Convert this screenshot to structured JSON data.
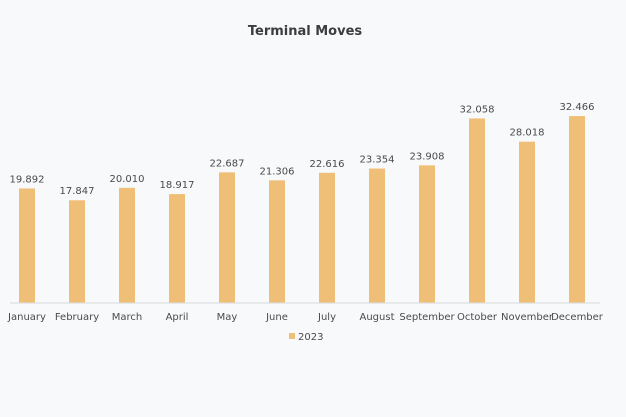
{
  "chart_data": {
    "type": "bar",
    "title": "Terminal Moves",
    "xlabel": "",
    "ylabel": "",
    "categories": [
      "January",
      "February",
      "March",
      "April",
      "May",
      "June",
      "July",
      "August",
      "September",
      "October",
      "November",
      "December"
    ],
    "series": [
      {
        "name": "2023",
        "values": [
          19892,
          17847,
          20010,
          18917,
          22687,
          21306,
          22616,
          23354,
          23908,
          32058,
          28018,
          32466
        ],
        "labels": [
          "19.892",
          "17.847",
          "20.010",
          "18.917",
          "22.687",
          "21.306",
          "22.616",
          "23.354",
          "23.908",
          "32.058",
          "28.018",
          "32.466"
        ],
        "color": "#efbf77"
      }
    ],
    "ylim": [
      0,
      33000
    ],
    "grid": false,
    "legend_position": "bottom"
  }
}
